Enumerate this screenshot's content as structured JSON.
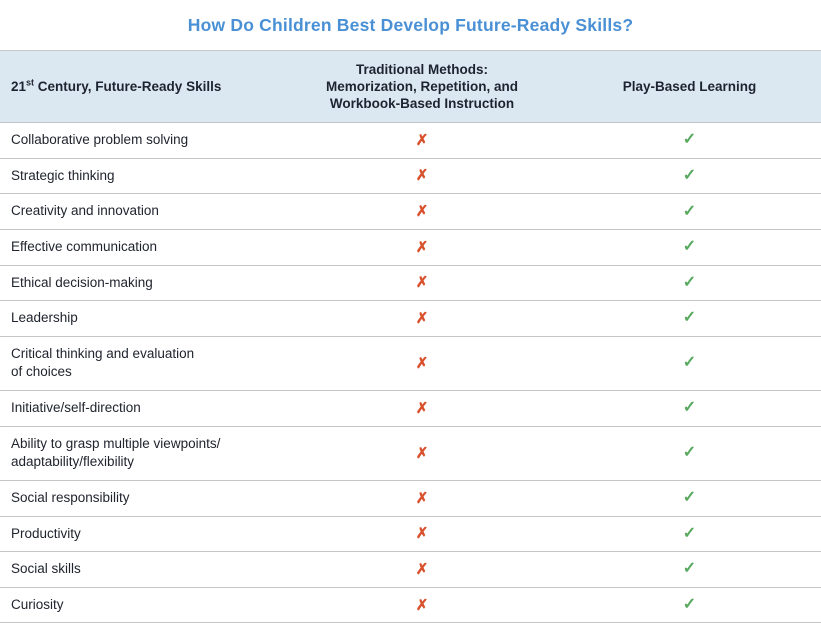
{
  "title": "How Do Children Best Develop Future-Ready Skills?",
  "header": {
    "skills_num": "21",
    "skills_sup": "st",
    "skills_rest": " Century, Future-Ready Skills",
    "traditional_lines": [
      "Traditional Methods:",
      "Memorization, Repetition, and",
      "Workbook-Based Instruction"
    ],
    "play": "Play-Based Learning"
  },
  "icons": {
    "cross": "✗",
    "check": "✓"
  },
  "colors": {
    "title_blue": "#4a90d5",
    "header_background": "#dce8f1",
    "row_border": "#c6c6c6",
    "cross_red": "#d8512c",
    "check_green": "#58a95f",
    "text": "#20242e"
  },
  "rows": [
    {
      "skill": "Collaborative problem solving",
      "traditional": "cross",
      "play": "check"
    },
    {
      "skill": "Strategic thinking",
      "traditional": "cross",
      "play": "check"
    },
    {
      "skill": "Creativity and innovation",
      "traditional": "cross",
      "play": "check"
    },
    {
      "skill": "Effective communication",
      "traditional": "cross",
      "play": "check"
    },
    {
      "skill": "Ethical decision-making",
      "traditional": "cross",
      "play": "check"
    },
    {
      "skill": "Leadership",
      "traditional": "cross",
      "play": "check"
    },
    {
      "skill": "Critical thinking and evaluation\nof choices",
      "traditional": "cross",
      "play": "check"
    },
    {
      "skill": "Initiative/self-direction",
      "traditional": "cross",
      "play": "check"
    },
    {
      "skill": "Ability to grasp multiple viewpoints/\nadaptability/flexibility",
      "traditional": "cross",
      "play": "check"
    },
    {
      "skill": "Social responsibility",
      "traditional": "cross",
      "play": "check"
    },
    {
      "skill": "Productivity",
      "traditional": "cross",
      "play": "check"
    },
    {
      "skill": "Social skills",
      "traditional": "cross",
      "play": "check"
    },
    {
      "skill": "Curiosity",
      "traditional": "cross",
      "play": "check"
    }
  ],
  "chart_data": {
    "type": "table",
    "title": "How Do Children Best Develop Future-Ready Skills?",
    "columns": [
      "21st Century, Future-Ready Skills",
      "Traditional Methods: Memorization, Repetition, and Workbook-Based Instruction",
      "Play-Based Learning"
    ],
    "rows": [
      [
        "Collaborative problem solving",
        "no",
        "yes"
      ],
      [
        "Strategic thinking",
        "no",
        "yes"
      ],
      [
        "Creativity and innovation",
        "no",
        "yes"
      ],
      [
        "Effective communication",
        "no",
        "yes"
      ],
      [
        "Ethical decision-making",
        "no",
        "yes"
      ],
      [
        "Leadership",
        "no",
        "yes"
      ],
      [
        "Critical thinking and evaluation of choices",
        "no",
        "yes"
      ],
      [
        "Initiative/self-direction",
        "no",
        "yes"
      ],
      [
        "Ability to grasp multiple viewpoints/adaptability/flexibility",
        "no",
        "yes"
      ],
      [
        "Social responsibility",
        "no",
        "yes"
      ],
      [
        "Productivity",
        "no",
        "yes"
      ],
      [
        "Social skills",
        "no",
        "yes"
      ],
      [
        "Curiosity",
        "no",
        "yes"
      ]
    ]
  }
}
